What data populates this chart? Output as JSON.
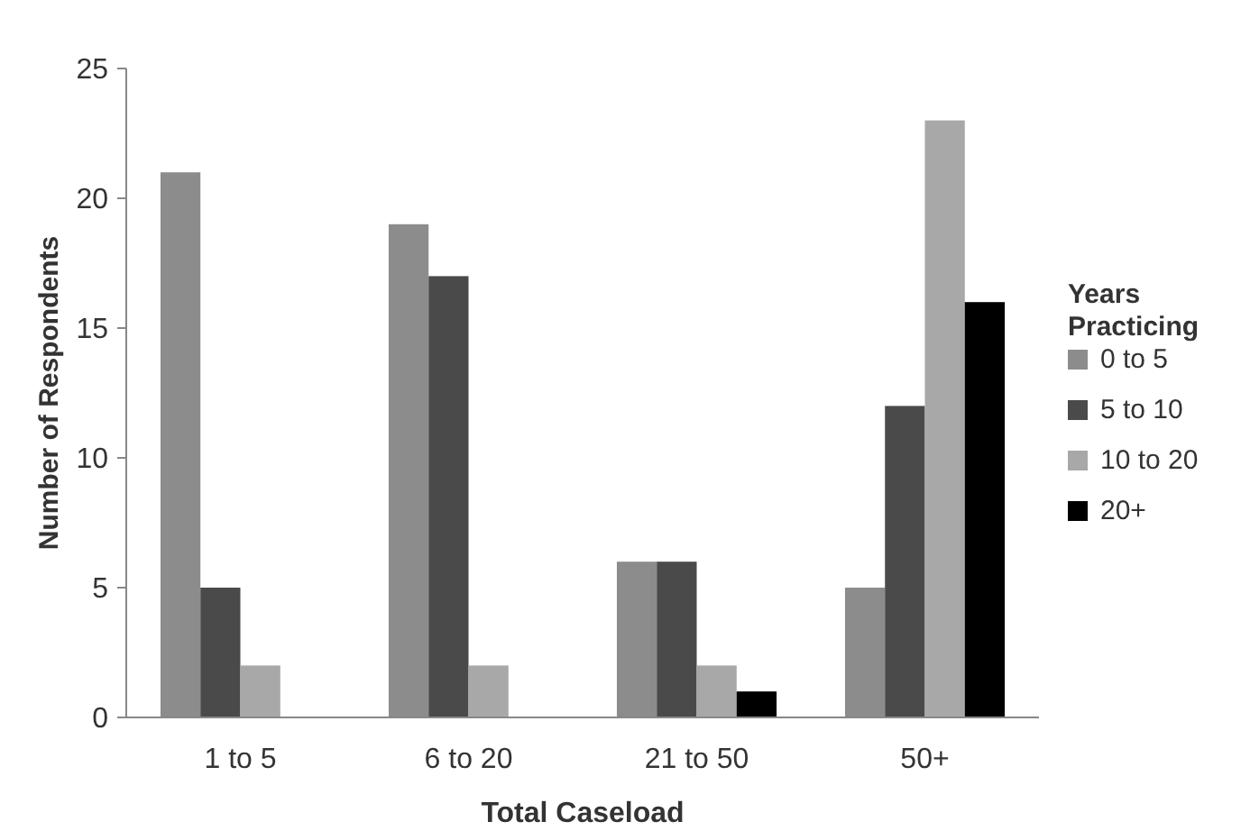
{
  "chart_data": {
    "type": "bar",
    "xlabel": "Total Caseload",
    "ylabel": "Number of Respondents",
    "legend_title": "Years Practicing",
    "legend": "right",
    "grid": false,
    "categories": [
      "1 to 5",
      "6 to 20",
      "21 to 50",
      "50+"
    ],
    "ylim": [
      0,
      25
    ],
    "yticks": [
      0,
      5,
      10,
      15,
      20,
      25
    ],
    "series": [
      {
        "name": "0 to 5",
        "color": "#8c8c8c",
        "values": [
          21,
          19,
          6,
          5
        ]
      },
      {
        "name": "5 to 10",
        "color": "#4a4a4a",
        "values": [
          5,
          17,
          6,
          12
        ]
      },
      {
        "name": "10 to 20",
        "color": "#a8a8a8",
        "values": [
          2,
          2,
          2,
          23
        ]
      },
      {
        "name": "20+",
        "color": "#000000",
        "values": [
          0,
          0,
          1,
          16
        ]
      }
    ]
  }
}
